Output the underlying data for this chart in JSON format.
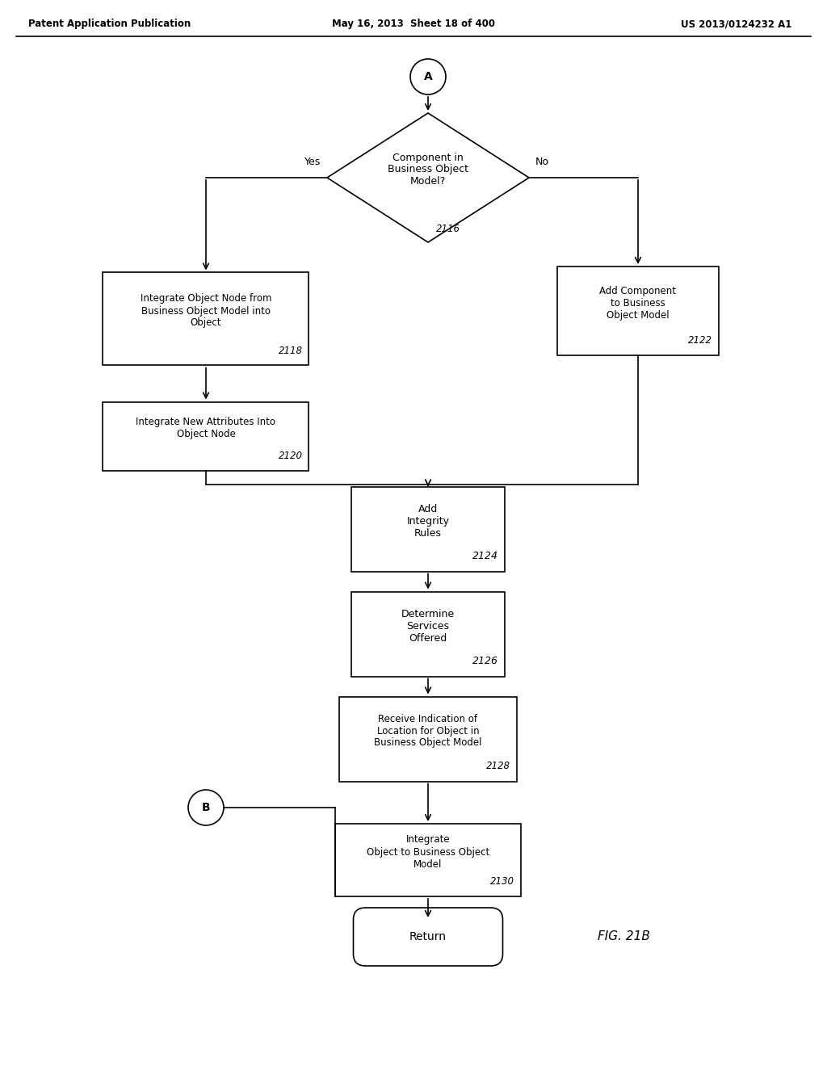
{
  "header_left": "Patent Application Publication",
  "header_middle": "May 16, 2013  Sheet 18 of 400",
  "header_right": "US 2013/0124232 A1",
  "fig_label": "FIG. 21B",
  "connector_A": "A",
  "connector_B": "B",
  "diamond_text": "Component in\nBusiness Object\nModel?",
  "diamond_id": "2116",
  "yes_label": "Yes",
  "no_label": "No",
  "box_2118_text": "Integrate Object Node from\nBusiness Object Model into\nObject",
  "box_2118_id": "2118",
  "box_2120_text": "Integrate New Attributes Into\nObject Node",
  "box_2120_id": "2120",
  "box_2122_text": "Add Component\nto Business\nObject Model",
  "box_2122_id": "2122",
  "box_2124_text": "Add\nIntegrity\nRules",
  "box_2124_id": "2124",
  "box_2126_text": "Determine\nServices\nOffered",
  "box_2126_id": "2126",
  "box_2128_text": "Receive Indication of\nLocation for Object in\nBusiness Object Model",
  "box_2128_id": "2128",
  "box_2130_text": "Integrate\nObject to Business Object\nModel",
  "box_2130_id": "2130",
  "return_text": "Return",
  "bg_color": "#ffffff",
  "line_color": "#000000",
  "text_color": "#000000",
  "id_color": "#000000"
}
